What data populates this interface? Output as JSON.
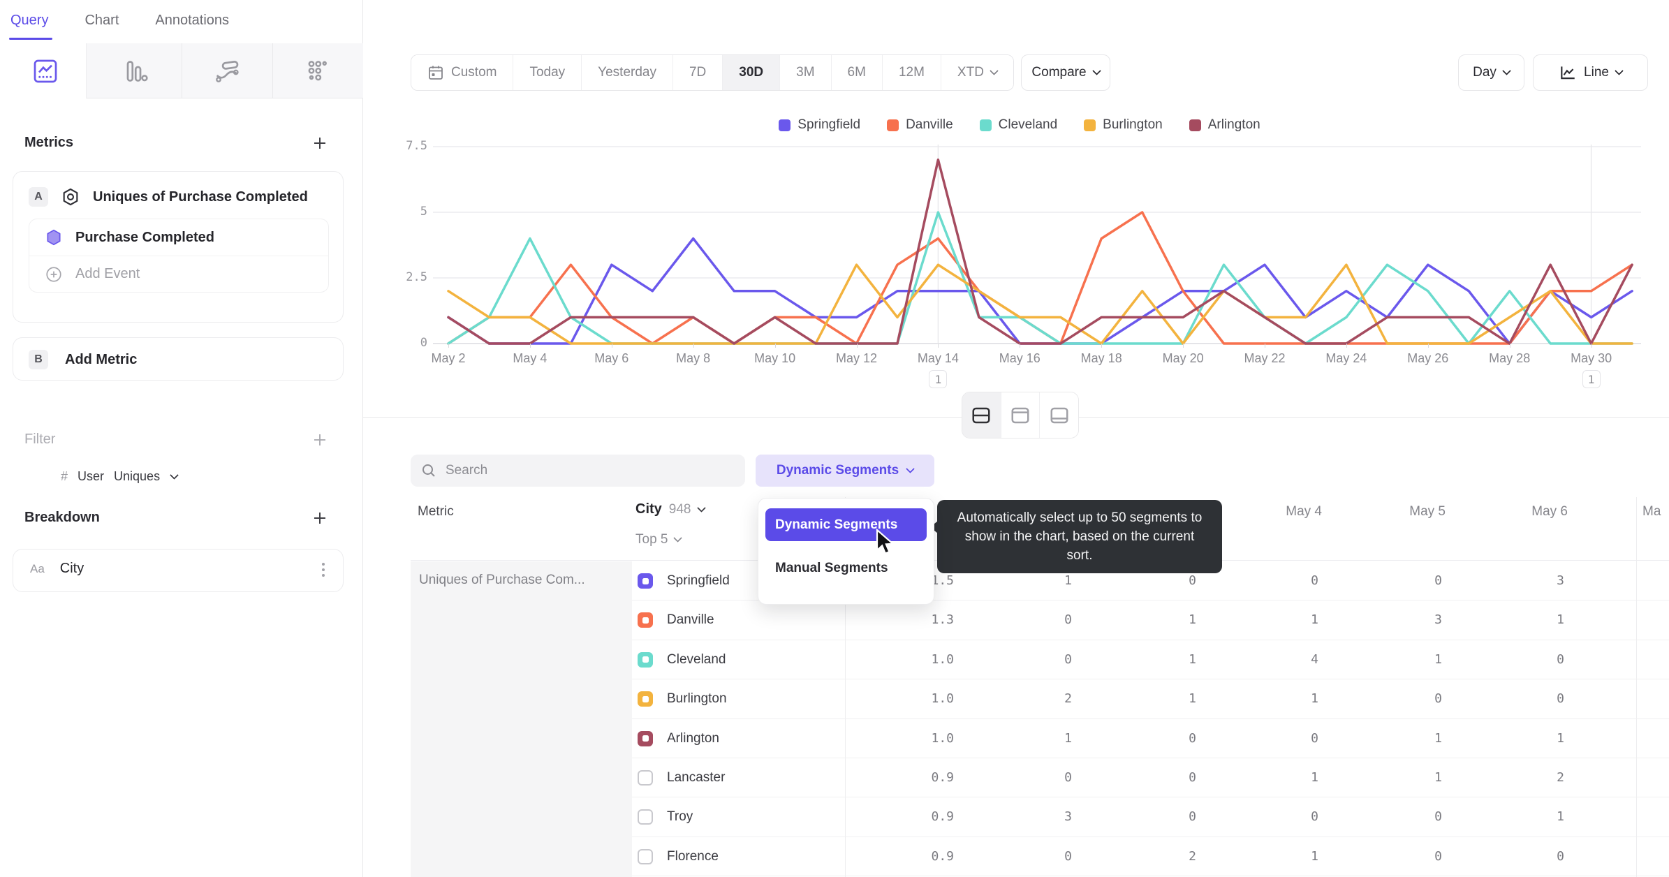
{
  "tabs": {
    "items": [
      {
        "label": "Query",
        "active": true
      },
      {
        "label": "Chart",
        "active": false
      },
      {
        "label": "Annotations",
        "active": false
      }
    ]
  },
  "chart_type_tabs": {
    "items": [
      {
        "icon": "line-chart-icon",
        "active": true
      },
      {
        "icon": "bar-chart-icon",
        "active": false
      },
      {
        "icon": "stream-chart-icon",
        "active": false
      },
      {
        "icon": "dots-grid-icon",
        "active": false
      }
    ]
  },
  "metrics_panel": {
    "title": "Metrics",
    "metric_a": {
      "badge": "A",
      "name": "Uniques of Purchase Completed",
      "event_name": "Purchase Completed",
      "add_event_label": "Add Event",
      "measure_prefix": "#",
      "measure_entity": "User",
      "measure_agg": "Uniques"
    },
    "metric_b": {
      "badge": "B",
      "label": "Add Metric"
    }
  },
  "filter_panel": {
    "title": "Filter"
  },
  "breakdown_panel": {
    "title": "Breakdown",
    "item": {
      "type_label": "Aa",
      "name": "City"
    }
  },
  "toolbar": {
    "date_ranges": [
      {
        "label": "Custom",
        "icon": "calendar-icon",
        "active": false,
        "chevron": false
      },
      {
        "label": "Today",
        "active": false,
        "chevron": false
      },
      {
        "label": "Yesterday",
        "active": false,
        "chevron": false
      },
      {
        "label": "7D",
        "active": false,
        "chevron": false
      },
      {
        "label": "30D",
        "active": true,
        "chevron": false
      },
      {
        "label": "3M",
        "active": false,
        "chevron": false
      },
      {
        "label": "6M",
        "active": false,
        "chevron": false
      },
      {
        "label": "12M",
        "active": false,
        "chevron": false
      },
      {
        "label": "XTD",
        "active": false,
        "chevron": true
      }
    ],
    "compare_label": "Compare",
    "interval_label": "Day",
    "chart_style_label": "Line"
  },
  "chart_data": {
    "type": "line",
    "x_labels": [
      "May 2",
      "May 3",
      "May 4",
      "May 5",
      "May 6",
      "May 7",
      "May 8",
      "May 9",
      "May 10",
      "May 11",
      "May 12",
      "May 13",
      "May 14",
      "May 15",
      "May 16",
      "May 17",
      "May 18",
      "May 19",
      "May 20",
      "May 21",
      "May 22",
      "May 23",
      "May 24",
      "May 25",
      "May 26",
      "May 27",
      "May 28",
      "May 29",
      "May 30",
      "May 31"
    ],
    "xtick_labels": [
      "May 2",
      "May 4",
      "May 6",
      "May 8",
      "May 10",
      "May 12",
      "May 14",
      "May 16",
      "May 18",
      "May 20",
      "May 22",
      "May 24",
      "May 26",
      "May 28",
      "May 30"
    ],
    "yticks": [
      "0",
      "2.5",
      "5",
      "7.5"
    ],
    "ylim": [
      0,
      7.5
    ],
    "grid": true,
    "legend_position": "top-center",
    "series": [
      {
        "name": "Springfield",
        "color": "#6A58EC",
        "values": [
          1,
          0,
          0,
          0,
          3,
          2,
          4,
          2,
          2,
          1,
          1,
          2,
          2,
          2,
          0,
          0,
          0,
          1,
          2,
          2,
          3,
          1,
          2,
          1,
          3,
          2,
          0,
          2,
          1,
          2
        ]
      },
      {
        "name": "Danville",
        "color": "#F7714E",
        "values": [
          0,
          1,
          1,
          3,
          1,
          0,
          1,
          0,
          1,
          1,
          0,
          3,
          4,
          2,
          1,
          0,
          4,
          5,
          2,
          0,
          0,
          0,
          0,
          0,
          0,
          0,
          0,
          2,
          2,
          3
        ]
      },
      {
        "name": "Cleveland",
        "color": "#6BDBCD",
        "values": [
          0,
          1,
          4,
          1,
          0,
          0,
          0,
          0,
          0,
          0,
          0,
          0,
          5,
          1,
          1,
          0,
          0,
          0,
          0,
          3,
          1,
          0,
          1,
          3,
          2,
          0,
          2,
          0,
          0,
          0
        ]
      },
      {
        "name": "Burlington",
        "color": "#F3B33E",
        "values": [
          2,
          1,
          1,
          0,
          0,
          0,
          0,
          0,
          0,
          0,
          3,
          1,
          3,
          2,
          1,
          1,
          0,
          2,
          0,
          2,
          1,
          1,
          3,
          0,
          0,
          0,
          1,
          2,
          0,
          0
        ]
      },
      {
        "name": "Arlington",
        "color": "#A54B5F",
        "values": [
          1,
          0,
          0,
          1,
          1,
          1,
          1,
          0,
          1,
          0,
          0,
          0,
          7,
          1,
          0,
          0,
          1,
          1,
          1,
          2,
          1,
          0,
          0,
          1,
          1,
          1,
          0,
          3,
          0,
          3
        ]
      }
    ],
    "annotations": [
      {
        "x_label": "May 14",
        "label": "1"
      },
      {
        "x_label": "May 30",
        "label": "1"
      }
    ]
  },
  "layout_toggles": {
    "items": [
      {
        "icon": "split-horizontal-icon",
        "active": true
      },
      {
        "icon": "panel-top-icon",
        "active": false
      },
      {
        "icon": "panel-bottom-icon",
        "active": false
      }
    ]
  },
  "segments_panel": {
    "search_placeholder": "Search",
    "mode_button_label": "Dynamic Segments",
    "dropdown": {
      "items": [
        {
          "label": "Dynamic Segments",
          "selected": true
        },
        {
          "label": "Manual Segments",
          "selected": false
        }
      ]
    },
    "tooltip": "Automatically select up to 50 segments to show in the chart, based on the current sort.",
    "table": {
      "metric_header": "Metric",
      "group_header": "City",
      "group_count": "948",
      "top_label": "Top 5",
      "metric_cell": "Uniques of Purchase Com...",
      "visible_day_headers": [
        "May 4",
        "May 5",
        "May 6",
        "Ma"
      ],
      "rows": [
        {
          "name": "Springfield",
          "color": "#6A58EC",
          "checked": true,
          "avg": "1.5",
          "values": [
            "1",
            "0",
            "0",
            "0",
            "3"
          ]
        },
        {
          "name": "Danville",
          "color": "#F7714E",
          "checked": true,
          "avg": "1.3",
          "values": [
            "0",
            "1",
            "1",
            "3",
            "1"
          ]
        },
        {
          "name": "Cleveland",
          "color": "#6BDBCD",
          "checked": true,
          "avg": "1.0",
          "values": [
            "0",
            "1",
            "4",
            "1",
            "0"
          ]
        },
        {
          "name": "Burlington",
          "color": "#F3B33E",
          "checked": true,
          "avg": "1.0",
          "values": [
            "2",
            "1",
            "1",
            "0",
            "0"
          ]
        },
        {
          "name": "Arlington",
          "color": "#A54B5F",
          "checked": true,
          "avg": "1.0",
          "values": [
            "1",
            "0",
            "0",
            "1",
            "1"
          ]
        },
        {
          "name": "Lancaster",
          "color": "",
          "checked": false,
          "avg": "0.9",
          "values": [
            "0",
            "0",
            "1",
            "1",
            "2"
          ]
        },
        {
          "name": "Troy",
          "color": "",
          "checked": false,
          "avg": "0.9",
          "values": [
            "3",
            "0",
            "0",
            "0",
            "1"
          ]
        },
        {
          "name": "Florence",
          "color": "",
          "checked": false,
          "avg": "0.9",
          "values": [
            "0",
            "2",
            "1",
            "0",
            "0"
          ]
        }
      ]
    }
  }
}
